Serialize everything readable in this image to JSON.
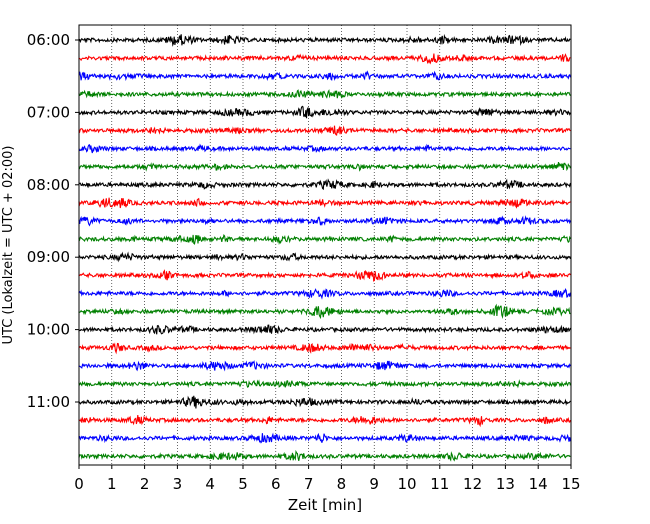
{
  "chart_data": {
    "type": "line",
    "title": "",
    "xlabel": "Zeit  [min]",
    "ylabel": "UTC (Lokalzeit = UTC + 02:00)",
    "xlim": [
      0,
      15
    ],
    "x_ticks": [
      0,
      1,
      2,
      3,
      4,
      5,
      6,
      7,
      8,
      9,
      10,
      11,
      12,
      13,
      14,
      15
    ],
    "x_tick_labels": [
      "0",
      "1",
      "2",
      "3",
      "4",
      "5",
      "6",
      "7",
      "8",
      "9",
      "10",
      "11",
      "12",
      "13",
      "14",
      "15"
    ],
    "x_grid": "dotted vertical lines at each minute",
    "y_tick_labels": [
      "06:00",
      "07:00",
      "08:00",
      "09:00",
      "10:00",
      "11:00"
    ],
    "trace_interval_minutes": 15,
    "trace_colors_cycle": [
      "#000000",
      "#ff0000",
      "#0000ff",
      "#008000"
    ],
    "trace_count": 24,
    "traces_start": "06:00",
    "traces_end": "11:45"
  }
}
